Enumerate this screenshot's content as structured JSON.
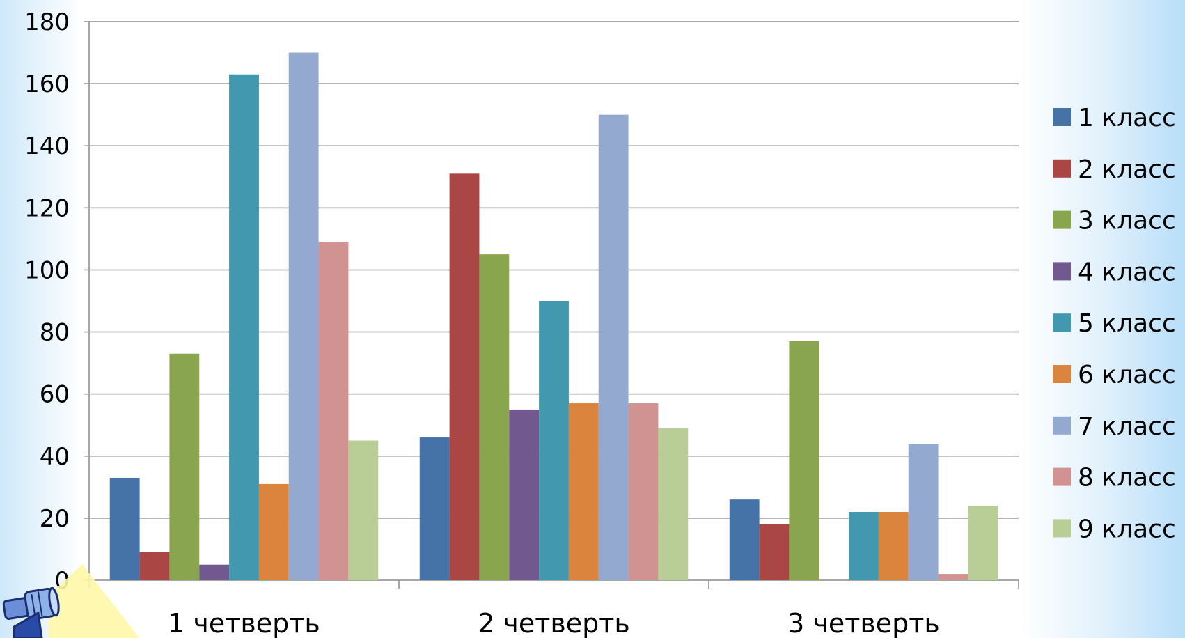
{
  "chart_data": {
    "type": "bar",
    "title": "",
    "xlabel": "",
    "ylabel": "",
    "categories": [
      "1 четверть",
      "2 четверть",
      "3 четверть"
    ],
    "ylim": [
      0,
      180
    ],
    "yticks": [
      0,
      20,
      40,
      60,
      80,
      100,
      120,
      140,
      160,
      180
    ],
    "grid": true,
    "legend_position": "right",
    "series": [
      {
        "name": "1 класс",
        "color": "#4572a7",
        "values": [
          33,
          46,
          26
        ]
      },
      {
        "name": "2 класс",
        "color": "#aa4643",
        "values": [
          9,
          131,
          18
        ]
      },
      {
        "name": "3 класс",
        "color": "#89a54e",
        "values": [
          73,
          105,
          77
        ]
      },
      {
        "name": "4 класс",
        "color": "#71588f",
        "values": [
          5,
          55,
          0
        ]
      },
      {
        "name": "5 класс",
        "color": "#4198af",
        "values": [
          163,
          90,
          22
        ]
      },
      {
        "name": "6 класс",
        "color": "#db843d",
        "values": [
          31,
          57,
          22
        ]
      },
      {
        "name": "7 класс",
        "color": "#93a9cf",
        "values": [
          170,
          150,
          44
        ]
      },
      {
        "name": "8 класс",
        "color": "#d19392",
        "values": [
          109,
          57,
          2
        ]
      },
      {
        "name": "9 класс",
        "color": "#b9cd96",
        "values": [
          45,
          49,
          24
        ]
      }
    ]
  },
  "decor": {
    "corner_icon": "telescope-icon"
  }
}
